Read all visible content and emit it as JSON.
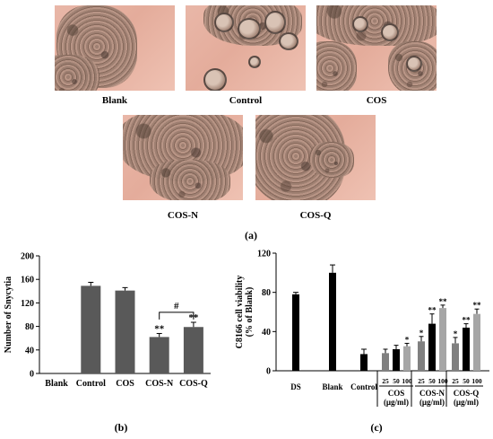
{
  "panel_a": {
    "images": [
      {
        "label": "Blank"
      },
      {
        "label": "Control"
      },
      {
        "label": "COS"
      },
      {
        "label": "COS-N"
      },
      {
        "label": "COS-Q"
      }
    ],
    "caption": "(a)"
  },
  "panel_b": {
    "caption": "(b)"
  },
  "panel_c": {
    "caption": "(c)"
  },
  "chart_data": [
    {
      "type": "bar",
      "categories": [
        "Blank",
        "Control",
        "COS",
        "COS-N",
        "COS-Q"
      ],
      "values": [
        0,
        149,
        141,
        62,
        79
      ],
      "errors": [
        0,
        6,
        5,
        6,
        8
      ],
      "significance": [
        "",
        "",
        "",
        "**",
        "**"
      ],
      "bracket": {
        "from": "COS-N",
        "to": "COS-Q",
        "label": "#"
      },
      "ylabel": "Number of Snycytia",
      "yticks": [
        0,
        40,
        80,
        120,
        160,
        200
      ],
      "ylim": [
        0,
        200
      ],
      "color": "#595959"
    },
    {
      "type": "bar",
      "ylabel": "C8166 cell viability\n(% of Blank)",
      "yticks": [
        0,
        40,
        80,
        120
      ],
      "ylim": [
        0,
        120
      ],
      "groups": [
        {
          "label": "DS",
          "bars": [
            {
              "value": 78,
              "error": 2,
              "color": "#000000",
              "sig": ""
            }
          ]
        },
        {
          "label": "Blank",
          "bars": [
            {
              "value": 100,
              "error": 8,
              "color": "#000000",
              "sig": ""
            }
          ]
        },
        {
          "label": "Control",
          "bars": [
            {
              "value": 17,
              "error": 5,
              "color": "#000000",
              "sig": ""
            }
          ]
        },
        {
          "label": "COS",
          "unit": "(μg/ml)",
          "doses": [
            "25",
            "50",
            "100"
          ],
          "bars": [
            {
              "value": 18,
              "error": 4,
              "color": "#808080",
              "sig": ""
            },
            {
              "value": 22,
              "error": 4,
              "color": "#000000",
              "sig": ""
            },
            {
              "value": 25,
              "error": 3,
              "color": "#a6a6a6",
              "sig": "*"
            }
          ]
        },
        {
          "label": "COS-N",
          "unit": "(μg/ml)",
          "doses": [
            "25",
            "50",
            "100"
          ],
          "bars": [
            {
              "value": 30,
              "error": 5,
              "color": "#808080",
              "sig": "*"
            },
            {
              "value": 48,
              "error": 10,
              "color": "#000000",
              "sig": "**"
            },
            {
              "value": 64,
              "error": 3,
              "color": "#a6a6a6",
              "sig": "**"
            }
          ]
        },
        {
          "label": "COS-Q",
          "unit": "(μg/ml)",
          "doses": [
            "25",
            "50",
            "100"
          ],
          "bars": [
            {
              "value": 28,
              "error": 6,
              "color": "#808080",
              "sig": "*"
            },
            {
              "value": 44,
              "error": 4,
              "color": "#000000",
              "sig": "**"
            },
            {
              "value": 58,
              "error": 5,
              "color": "#a6a6a6",
              "sig": "**"
            }
          ]
        }
      ]
    }
  ]
}
